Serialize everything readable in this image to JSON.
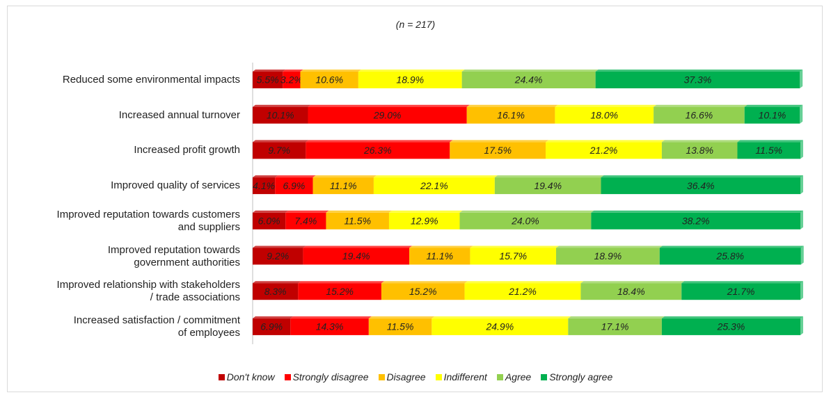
{
  "chart_data": {
    "type": "stacked_barh",
    "subtitle": "(n = 217)",
    "categories": [
      "Reduced some environmental impacts",
      "Increased annual turnover",
      "Increased profit growth",
      "Improved quality of services",
      "Improved reputation towards customers\nand suppliers",
      "Improved reputation towards\ngovernment authorities",
      "Improved relationship with stakeholders\n/ trade associations",
      "Increased satisfaction / commitment\nof employees"
    ],
    "xlim": [
      0,
      100
    ],
    "series": [
      {
        "name": "Don't know",
        "color": "#c00000",
        "values": [
          5.5,
          10.1,
          9.7,
          4.1,
          6.0,
          9.2,
          8.3,
          6.9
        ],
        "value_labels": [
          "5.5%",
          "10.1%",
          "9.7%",
          "4.1%",
          "6.0%",
          "9.2%",
          "8.3%",
          "6.9%"
        ]
      },
      {
        "name": "Strongly disagree",
        "color": "#ff0000",
        "values": [
          3.2,
          29.0,
          26.3,
          6.9,
          7.4,
          19.4,
          15.2,
          14.3
        ],
        "value_labels": [
          "3.2%",
          "29.0%",
          "26.3%",
          "6.9%",
          "7.4%",
          "19.4%",
          "15.2%",
          "14.3%"
        ]
      },
      {
        "name": "Disagree",
        "color": "#ffc000",
        "values": [
          10.6,
          16.1,
          17.5,
          11.1,
          11.5,
          11.1,
          15.2,
          11.5
        ],
        "value_labels": [
          "10.6%",
          "16.1%",
          "17.5%",
          "11.1%",
          "11.5%",
          "11.1%",
          "15.2%",
          "11.5%"
        ]
      },
      {
        "name": "Indifferent",
        "color": "#ffff00",
        "values": [
          18.9,
          18.0,
          21.2,
          22.1,
          12.9,
          15.7,
          21.2,
          24.9
        ],
        "value_labels": [
          "18.9%",
          "18.0%",
          "21.2%",
          "22.1%",
          "12.9%",
          "15.7%",
          "21.2%",
          "24.9%"
        ]
      },
      {
        "name": "Agree",
        "color": "#92d050",
        "values": [
          24.4,
          16.6,
          13.8,
          19.4,
          24.0,
          18.9,
          18.4,
          17.1
        ],
        "value_labels": [
          "24.4%",
          "16.6%",
          "13.8%",
          "19.4%",
          "24.0%",
          "18.9%",
          "18.4%",
          "17.1%"
        ]
      },
      {
        "name": "Strongly agree",
        "color": "#00b050",
        "values": [
          37.3,
          10.1,
          11.5,
          36.4,
          38.2,
          25.8,
          21.7,
          25.3
        ],
        "value_labels": [
          "37.3%",
          "10.1%",
          "11.5%",
          "36.4%",
          "38.2%",
          "25.8%",
          "21.7%",
          "25.3%"
        ]
      }
    ]
  }
}
